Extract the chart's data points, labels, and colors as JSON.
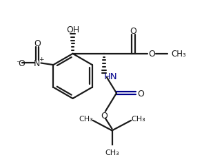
{
  "background_color": "#ffffff",
  "line_color": "#1a1a1a",
  "bond_lw": 1.6,
  "blue_color": "#00008B",
  "figsize": [
    3.25,
    2.26
  ],
  "dpi": 100,
  "xlim": [
    0,
    9
  ],
  "ylim": [
    0,
    6.5
  ]
}
